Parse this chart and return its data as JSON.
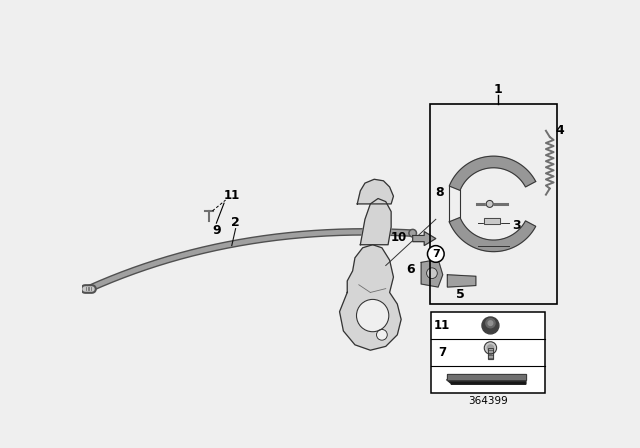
{
  "bg_color": "#efefef",
  "part_number": "364399",
  "white": "#ffffff",
  "outline": "#333333",
  "gray_light": "#c8c8c8",
  "gray_mid": "#a0a0a0",
  "gray_dark": "#707070",
  "gray_darker": "#505050",
  "black": "#111111",
  "shoe_color": "#909090",
  "carrier_fill": "#d4d4d4",
  "carrier_dark": "#b0b0b0",
  "cable_outer": "#888888",
  "cable_inner": "#c0c0c0"
}
